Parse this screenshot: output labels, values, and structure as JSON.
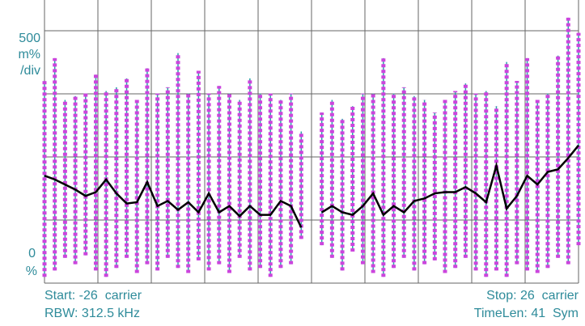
{
  "chart_data": {
    "type": "line",
    "x": [
      -26,
      -25,
      -24,
      -23,
      -22,
      -21,
      -20,
      -19,
      -18,
      -17,
      -16,
      -15,
      -14,
      -13,
      -12,
      -11,
      -10,
      -9,
      -8,
      -7,
      -6,
      -5,
      -4,
      -3,
      -2,
      -1,
      0,
      1,
      2,
      3,
      4,
      5,
      6,
      7,
      8,
      9,
      10,
      11,
      12,
      13,
      14,
      15,
      16,
      17,
      18,
      19,
      20,
      21,
      22,
      23,
      24,
      25,
      26
    ],
    "xlim": [
      -26,
      26
    ],
    "ylim": [
      0,
      2.24
    ],
    "grid": true,
    "series": [
      {
        "color": "#000000",
        "values": [
          0.85,
          0.82,
          0.78,
          0.74,
          0.69,
          0.72,
          0.82,
          0.71,
          0.63,
          0.64,
          0.8,
          0.61,
          0.65,
          0.58,
          0.64,
          0.56,
          0.71,
          0.56,
          0.61,
          0.53,
          0.61,
          0.54,
          0.54,
          0.65,
          0.61,
          0.44,
          null,
          0.56,
          0.61,
          0.56,
          0.54,
          0.61,
          0.71,
          0.54,
          0.61,
          0.56,
          0.65,
          0.67,
          0.71,
          0.72,
          0.72,
          0.76,
          0.71,
          0.64,
          0.93,
          0.59,
          0.69,
          0.85,
          0.78,
          0.88,
          0.9,
          0.99,
          1.09
        ]
      }
    ],
    "range": {
      "stem_color": "#2aa0a8",
      "dot_color": "#cc44dd",
      "low": [
        0.05,
        0.1,
        0.2,
        0.15,
        0.22,
        0.1,
        0.05,
        0.12,
        0.2,
        0.08,
        0.15,
        0.1,
        0.2,
        0.12,
        0.08,
        0.18,
        0.1,
        0.15,
        0.08,
        0.2,
        0.1,
        0.12,
        0.05,
        0.12,
        0.15,
        0.35,
        null,
        0.3,
        0.2,
        0.1,
        0.25,
        0.15,
        0.08,
        0.05,
        0.12,
        0.2,
        0.1,
        0.15,
        0.18,
        0.08,
        0.12,
        0.2,
        0.1,
        0.05,
        0.1,
        0.05,
        0.15,
        0.1,
        0.08,
        0.12,
        0.2,
        0.15,
        0.3
      ],
      "high": [
        1.6,
        1.78,
        1.45,
        1.48,
        1.5,
        1.65,
        1.52,
        1.55,
        1.62,
        1.45,
        1.7,
        1.5,
        1.55,
        1.82,
        1.5,
        1.68,
        1.5,
        1.56,
        1.5,
        1.45,
        1.62,
        1.5,
        1.5,
        1.45,
        1.5,
        1.2,
        null,
        1.35,
        1.45,
        1.3,
        1.4,
        1.5,
        1.5,
        1.78,
        1.5,
        1.55,
        1.48,
        1.45,
        1.35,
        1.45,
        1.52,
        1.58,
        1.5,
        1.52,
        1.4,
        1.75,
        1.6,
        1.78,
        1.45,
        1.5,
        1.8,
        2.1,
        1.98
      ]
    },
    "scale_labels": [
      "500",
      "m%",
      "/div",
      "0",
      "%"
    ],
    "annotations": [
      "Start: -26  carrier",
      "RBW: 312.5 kHz",
      "Stop: 26  carrier",
      "TimeLen: 41  Sym"
    ]
  }
}
